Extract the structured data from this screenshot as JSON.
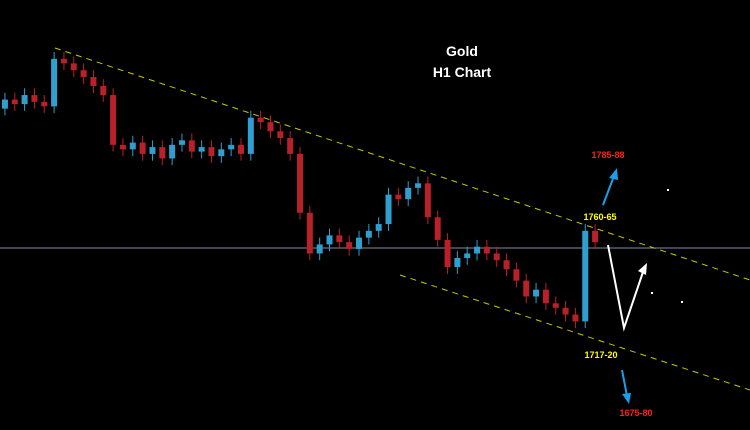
{
  "chart_data": {
    "type": "candlestick",
    "title": "Gold",
    "subtitle": "H1 Chart",
    "ylim": [
      1674,
      1864
    ],
    "up_color": "#2f9fd0",
    "down_color": "#b8202a",
    "open": [
      1816,
      1820,
      1818,
      1822,
      1819,
      1817,
      1838,
      1836,
      1833,
      1830,
      1826,
      1822,
      1800,
      1798,
      1801,
      1796,
      1799,
      1794,
      1800,
      1802,
      1797,
      1799,
      1795,
      1798,
      1800,
      1796,
      1812,
      1810,
      1806,
      1803,
      1796,
      1770,
      1752,
      1756,
      1760,
      1757,
      1754,
      1759,
      1762,
      1765,
      1778,
      1776,
      1781,
      1783,
      1768,
      1758,
      1746,
      1750,
      1752,
      1755,
      1752,
      1749,
      1745,
      1740,
      1733,
      1736,
      1730,
      1728,
      1725,
      1722,
      1762
    ],
    "high": [
      1823,
      1823,
      1825,
      1825,
      1822,
      1841,
      1841,
      1839,
      1836,
      1833,
      1829,
      1825,
      1803,
      1804,
      1804,
      1802,
      1802,
      1803,
      1805,
      1805,
      1802,
      1802,
      1801,
      1803,
      1803,
      1815,
      1815,
      1813,
      1809,
      1806,
      1799,
      1773,
      1759,
      1763,
      1763,
      1760,
      1762,
      1765,
      1768,
      1781,
      1781,
      1784,
      1786,
      1786,
      1771,
      1761,
      1753,
      1755,
      1758,
      1758,
      1755,
      1752,
      1748,
      1743,
      1739,
      1739,
      1733,
      1731,
      1728,
      1765,
      1765
    ],
    "low": [
      1813,
      1815,
      1815,
      1816,
      1814,
      1814,
      1833,
      1830,
      1827,
      1823,
      1819,
      1797,
      1795,
      1795,
      1793,
      1793,
      1791,
      1791,
      1797,
      1794,
      1794,
      1792,
      1792,
      1795,
      1793,
      1793,
      1807,
      1803,
      1800,
      1793,
      1767,
      1749,
      1749,
      1753,
      1754,
      1751,
      1751,
      1756,
      1759,
      1762,
      1773,
      1773,
      1778,
      1765,
      1755,
      1743,
      1743,
      1747,
      1749,
      1749,
      1746,
      1742,
      1737,
      1730,
      1730,
      1727,
      1725,
      1722,
      1719,
      1719,
      1754
    ],
    "close": [
      1820,
      1818,
      1822,
      1819,
      1817,
      1838,
      1836,
      1833,
      1830,
      1826,
      1822,
      1800,
      1798,
      1801,
      1796,
      1799,
      1794,
      1800,
      1802,
      1797,
      1799,
      1795,
      1798,
      1800,
      1796,
      1812,
      1810,
      1806,
      1803,
      1796,
      1770,
      1752,
      1756,
      1760,
      1757,
      1754,
      1759,
      1762,
      1765,
      1778,
      1776,
      1781,
      1783,
      1768,
      1758,
      1746,
      1750,
      1752,
      1755,
      1752,
      1749,
      1745,
      1740,
      1733,
      1736,
      1730,
      1728,
      1725,
      1722,
      1762,
      1757
    ],
    "annotations": [
      {
        "text": "1785-88",
        "color": "#ff2020"
      },
      {
        "text": "1760-65",
        "color": "#ffff00"
      },
      {
        "text": "1717-20",
        "color": "#ffff00"
      },
      {
        "text": "1675-80",
        "color": "#ff2020"
      }
    ]
  }
}
